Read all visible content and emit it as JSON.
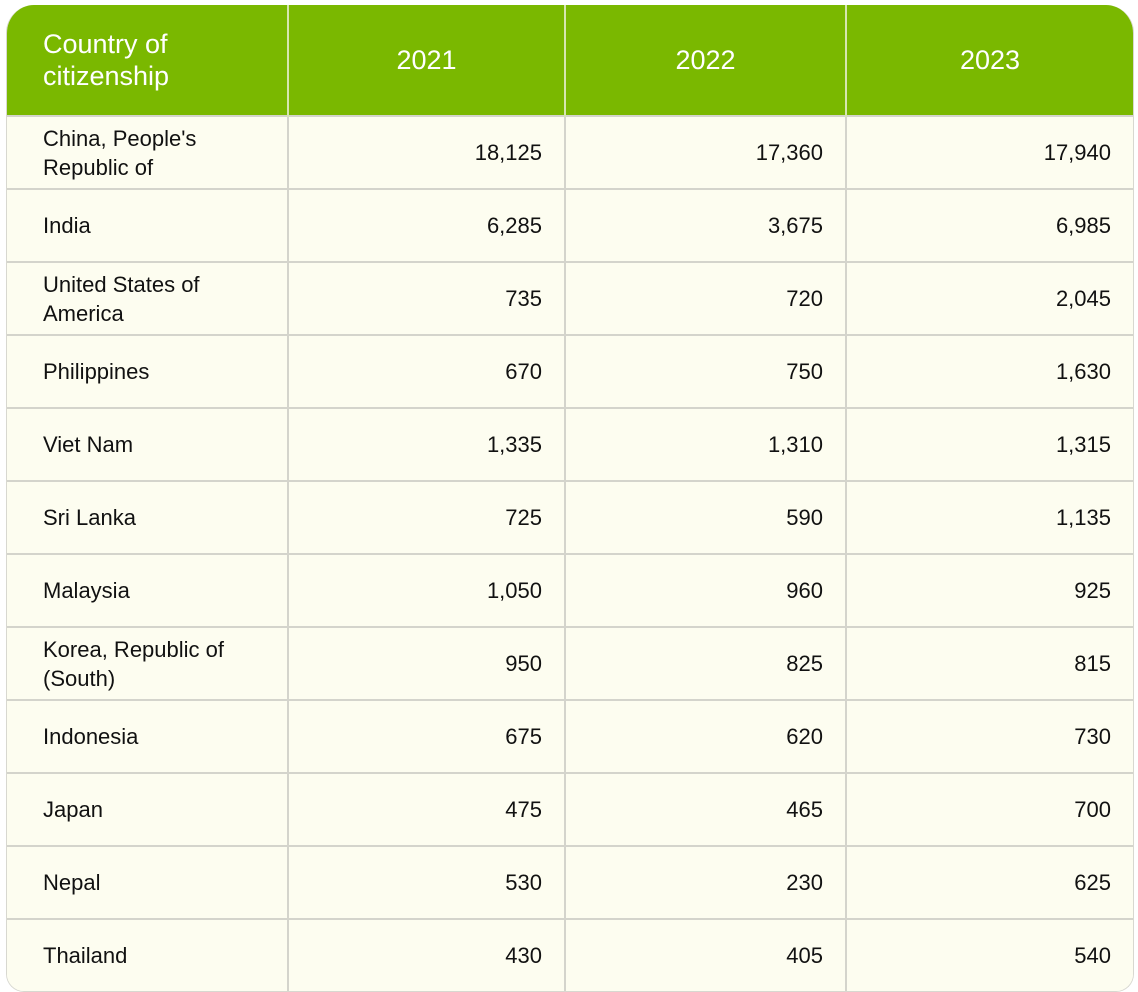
{
  "colors": {
    "header_bg": "#7ab800",
    "body_bg": "#fdfdf0"
  },
  "table": {
    "headers": [
      "Country of citizenship",
      "2021",
      "2022",
      "2023"
    ],
    "rows": [
      [
        "China, People's Republic of",
        "18,125",
        "17,360",
        "17,940"
      ],
      [
        "India",
        "6,285",
        "3,675",
        "6,985"
      ],
      [
        "United States of America",
        "735",
        "720",
        "2,045"
      ],
      [
        "Philippines",
        "670",
        "750",
        "1,630"
      ],
      [
        "Viet Nam",
        "1,335",
        "1,310",
        "1,315"
      ],
      [
        "Sri Lanka",
        "725",
        "590",
        "1,135"
      ],
      [
        "Malaysia",
        "1,050",
        "960",
        "925"
      ],
      [
        "Korea, Republic of (South)",
        "950",
        "825",
        "815"
      ],
      [
        "Indonesia",
        "675",
        "620",
        "730"
      ],
      [
        "Japan",
        "475",
        "465",
        "700"
      ],
      [
        "Nepal",
        "530",
        "230",
        "625"
      ],
      [
        "Thailand",
        "430",
        "405",
        "540"
      ]
    ]
  }
}
